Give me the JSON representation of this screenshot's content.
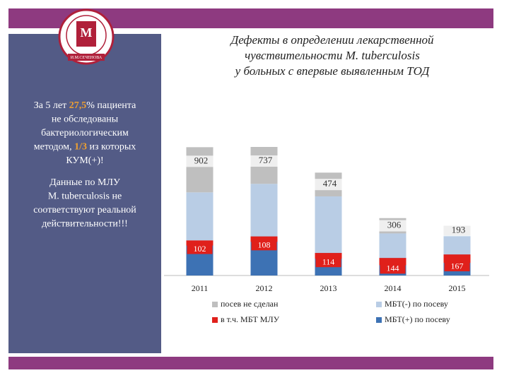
{
  "logo": {
    "text": "И.М.СЕЧЕНОВА"
  },
  "left_panel": {
    "lines": [
      [
        {
          "text": "За 5 лет "
        },
        {
          "text": "27,5",
          "highlight": true
        },
        {
          "text": "% пациента"
        }
      ],
      [
        {
          "text": "не обследованы"
        }
      ],
      [
        {
          "text": "бактериологическим"
        }
      ],
      [
        {
          "text": "методом, "
        },
        {
          "text": "1/3",
          "highlight": true
        },
        {
          "text": " из которых"
        }
      ],
      [
        {
          "text": "КУМ(+)!"
        }
      ]
    ],
    "lines2": [
      "Данные по МЛУ",
      "M. tuberculosis не",
      "соответствуют реальной",
      "действительности!!!"
    ]
  },
  "chart_data": {
    "type": "bar",
    "stacked": true,
    "title": [
      "Дефекты в определении лекарственной",
      "чувствительности M. tuberculosis",
      "у больных с впервые выявленным ТОД"
    ],
    "categories": [
      "2011",
      "2012",
      "2013",
      "2014",
      "2015"
    ],
    "series": [
      {
        "name": "посев не сделан",
        "color": "#bfbfbf",
        "values": [
          902,
          737,
          474,
          306,
          193
        ],
        "labels_shown": true
      },
      {
        "name": "МБТ(-) по посеву",
        "color": "#b9cde5",
        "values": [
          960,
          1050,
          1130,
          490,
          380
        ]
      },
      {
        "name": "в т.ч. МБТ МЛУ",
        "color": "#e0201b",
        "values": [
          102,
          108,
          114,
          144,
          167
        ],
        "subset_of": "МБТ(+) по посеву",
        "labels_shown": true
      },
      {
        "name": "МБТ(+) по посеву",
        "color": "#3d72b4",
        "values": [
          700,
          780,
          450,
          350,
          420
        ]
      }
    ],
    "legend": "bottom"
  }
}
